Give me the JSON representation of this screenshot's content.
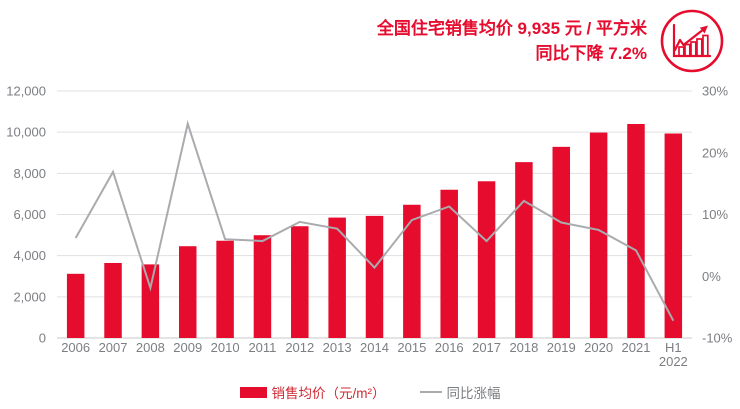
{
  "header": {
    "title_line1": "全国住宅销售均价 9,935 元 / 平方米",
    "title_line2": "同比下降 7.2%",
    "icon": "growth-chart-icon"
  },
  "legend": {
    "bar_label": "销售均价（元/m²）",
    "line_label": "同比涨幅"
  },
  "colors": {
    "accent": "#e50c2e",
    "bar": "#e50c2e",
    "line": "#a9abae",
    "text": "#7c7e82",
    "grid": "#e1e1e2",
    "baseline": "#c9c9cb",
    "legend_bar_text": "#cd2b35"
  },
  "chart_data": {
    "type": "bar+line",
    "title": "全国住宅销售均价 9,935 元 / 平方米，同比下降 7.2%",
    "categories": [
      "2006",
      "2007",
      "2008",
      "2009",
      "2010",
      "2011",
      "2012",
      "2013",
      "2014",
      "2015",
      "2016",
      "2017",
      "2018",
      "2019",
      "2020",
      "2021",
      "H1\n2022"
    ],
    "series": [
      {
        "name": "销售均价（元/m²）",
        "type": "bar",
        "axis": "left",
        "values": [
          3119,
          3645,
          3576,
          4459,
          4725,
          4993,
          5430,
          5850,
          5933,
          6473,
          7203,
          7614,
          8544,
          9287,
          9980,
          10396,
          9935
        ]
      },
      {
        "name": "同比涨幅",
        "type": "line",
        "axis": "right",
        "values": [
          6.2,
          16.9,
          -1.9,
          24.7,
          6.0,
          5.7,
          8.8,
          7.7,
          1.4,
          9.1,
          11.3,
          5.7,
          12.2,
          8.7,
          7.5,
          4.2,
          -7.2
        ]
      }
    ],
    "left_axis": {
      "min": 0,
      "max": 12000,
      "ticks": [
        {
          "v": 0,
          "label": "0"
        },
        {
          "v": 2000,
          "label": "2,000"
        },
        {
          "v": 4000,
          "label": "4,000"
        },
        {
          "v": 6000,
          "label": "6,000"
        },
        {
          "v": 8000,
          "label": "8,000"
        },
        {
          "v": 10000,
          "label": "10,000"
        },
        {
          "v": 12000,
          "label": "12,000"
        }
      ]
    },
    "right_axis": {
      "min": -10,
      "max": 30,
      "ticks": [
        {
          "v": -10,
          "label": "-10%"
        },
        {
          "v": 0,
          "label": "0%"
        },
        {
          "v": 10,
          "label": "10%"
        },
        {
          "v": 20,
          "label": "20%"
        },
        {
          "v": 30,
          "label": "30%"
        }
      ]
    },
    "grid": true,
    "legend_position": "bottom"
  }
}
